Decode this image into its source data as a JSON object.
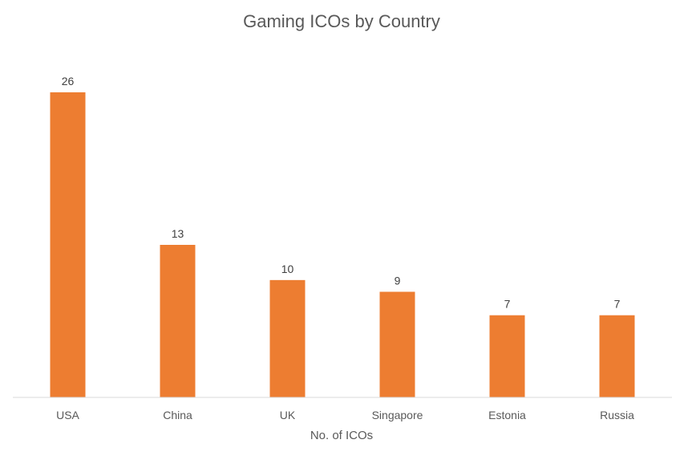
{
  "chart_data": {
    "type": "bar",
    "title": "Gaming ICOs by Country",
    "xlabel": "No. of ICOs",
    "ylabel": "",
    "categories": [
      "USA",
      "China",
      "UK",
      "Singapore",
      "Estonia",
      "Russia"
    ],
    "values": [
      26,
      13,
      10,
      9,
      7,
      7
    ],
    "ylim": [
      0,
      26
    ],
    "grid": false,
    "legend": "none",
    "bar_color": "#ED7D31",
    "axis_color": "#D9D9D9"
  }
}
